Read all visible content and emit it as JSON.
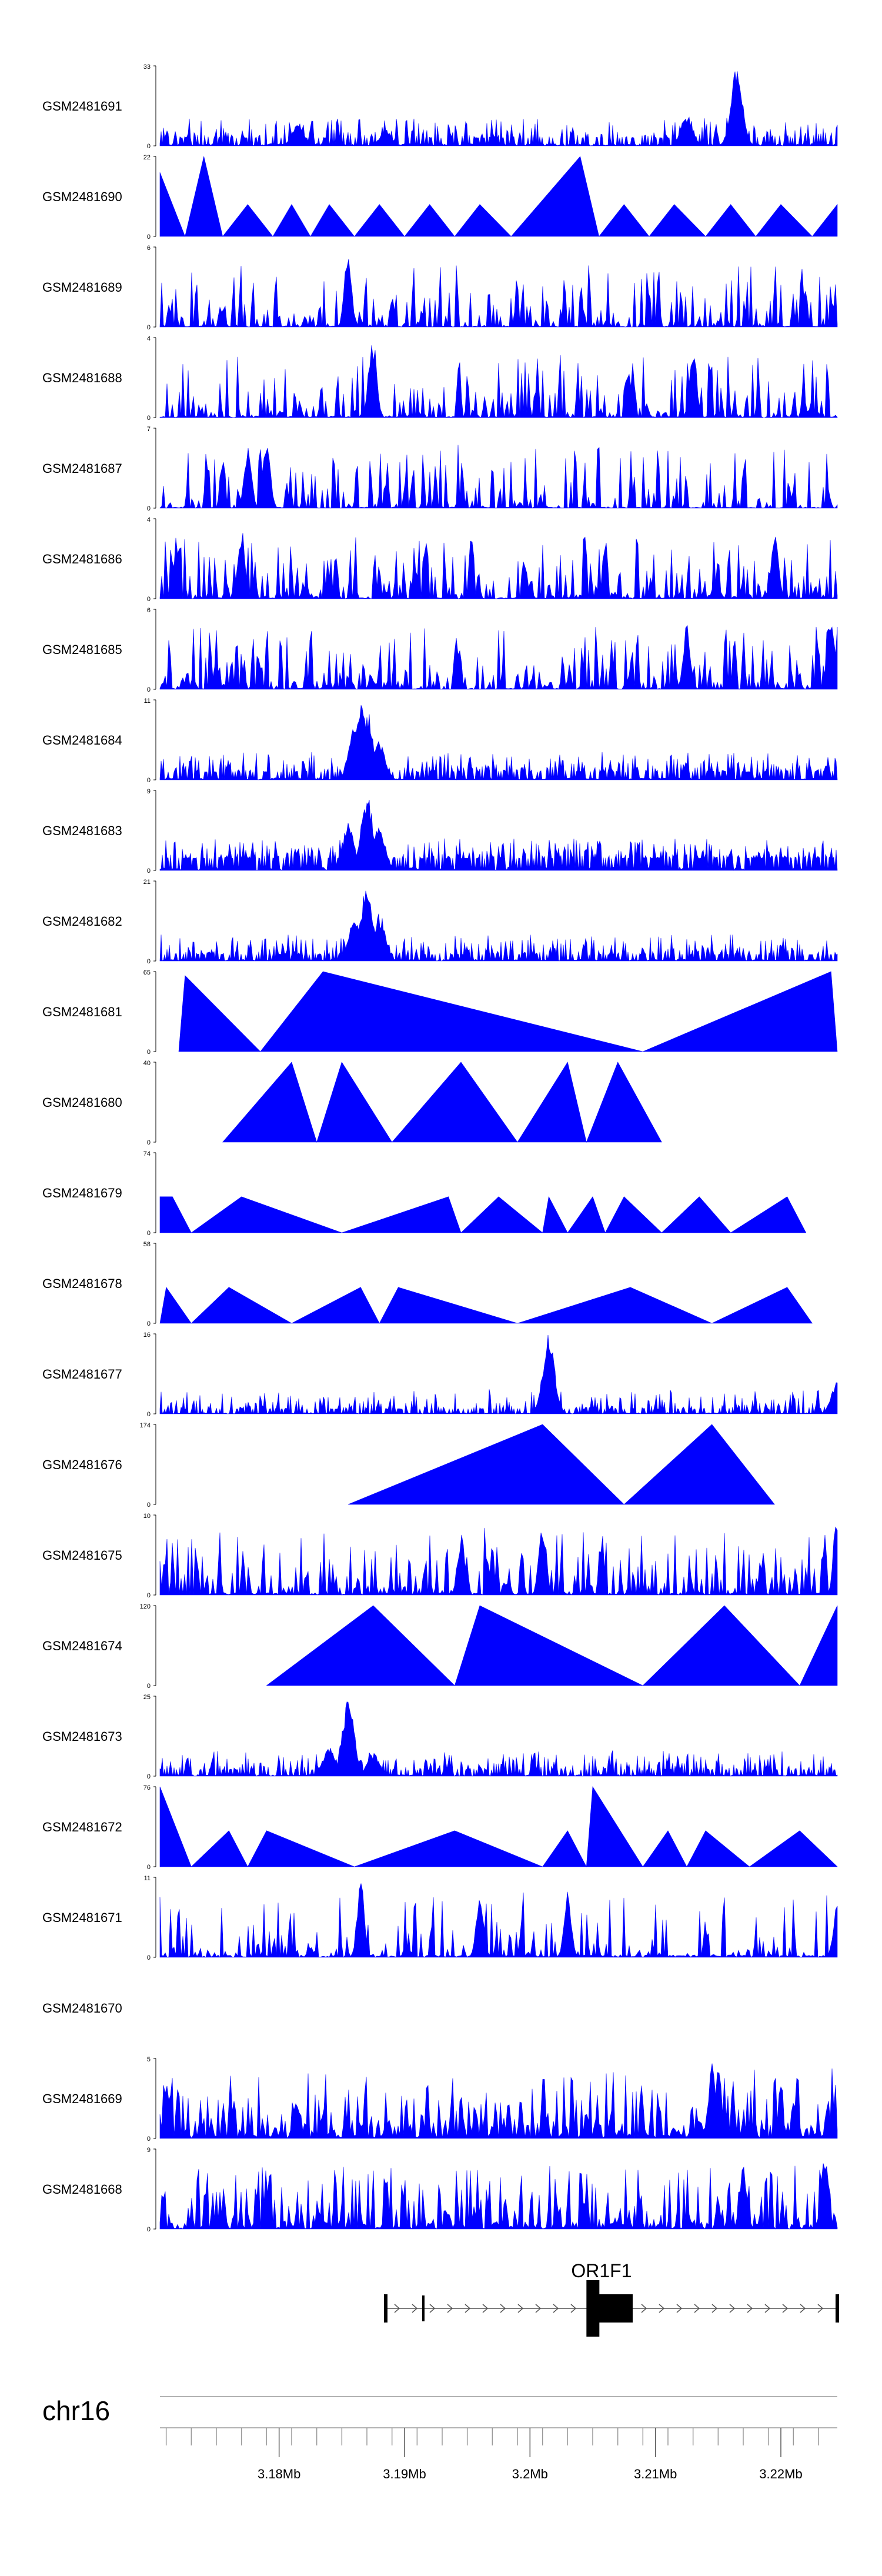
{
  "chart_data": {
    "type": "area",
    "chromosome": "chr16",
    "gene": {
      "name": "OR1F1",
      "start": 3.1885,
      "end": 3.2245,
      "strand": "+",
      "thick_exon": [
        3.2045,
        3.2065
      ]
    },
    "x_range_mb": [
      3.1705,
      3.2245
    ],
    "x_ticks": [
      {
        "value": 3.18,
        "label": "3.18Mb"
      },
      {
        "value": 3.19,
        "label": "3.19Mb"
      },
      {
        "value": 3.2,
        "label": "3.2Mb"
      },
      {
        "value": 3.21,
        "label": "3.21Mb"
      },
      {
        "value": 3.22,
        "label": "3.22Mb"
      }
    ],
    "tracks": [
      {
        "name": "GSM2481691",
        "ymax": "33",
        "style": "noise",
        "density": 0.55,
        "base": 0.1,
        "peaks": [
          [
            3.1815,
            0.3
          ],
          [
            3.1885,
            0.2
          ],
          [
            3.2125,
            0.4
          ],
          [
            3.2165,
            1.0
          ]
        ]
      },
      {
        "name": "GSM2481690",
        "ymax": "22",
        "style": "tri",
        "pts": [
          [
            3.1705,
            0.8
          ],
          [
            3.1725,
            0
          ],
          [
            3.174,
            1.0
          ],
          [
            3.1755,
            0
          ],
          [
            3.1775,
            0.4
          ],
          [
            3.1795,
            0
          ],
          [
            3.181,
            0.4
          ],
          [
            3.1825,
            0
          ],
          [
            3.184,
            0.4
          ],
          [
            3.186,
            0
          ],
          [
            3.188,
            0.4
          ],
          [
            3.19,
            0
          ],
          [
            3.192,
            0.4
          ],
          [
            3.194,
            0
          ],
          [
            3.196,
            0.4
          ],
          [
            3.1985,
            0
          ],
          [
            3.204,
            1.0
          ],
          [
            3.2055,
            0
          ],
          [
            3.2075,
            0.4
          ],
          [
            3.2095,
            0
          ],
          [
            3.2115,
            0.4
          ],
          [
            3.214,
            0
          ],
          [
            3.216,
            0.4
          ],
          [
            3.218,
            0
          ],
          [
            3.22,
            0.4
          ],
          [
            3.2225,
            0
          ],
          [
            3.2245,
            0.4
          ]
        ]
      },
      {
        "name": "GSM2481689",
        "ymax": "6",
        "style": "spiky",
        "density": 0.6,
        "base": 0.05,
        "peaks": [
          [
            3.1855,
            1.0
          ]
        ]
      },
      {
        "name": "GSM2481688",
        "ymax": "4",
        "style": "spiky",
        "density": 0.65,
        "base": 0.05,
        "peaks": [
          [
            3.1875,
            1.0
          ],
          [
            3.213,
            0.9
          ]
        ]
      },
      {
        "name": "GSM2481687",
        "ymax": "7",
        "style": "spiky",
        "density": 0.5,
        "base": 0.05,
        "peaks": [
          [
            3.179,
            1.0
          ],
          [
            3.1775,
            0.8
          ]
        ]
      },
      {
        "name": "GSM2481686",
        "ymax": "4",
        "style": "spiky",
        "density": 0.7,
        "base": 0.05,
        "peaks": [
          [
            3.177,
            0.9
          ],
          [
            3.2195,
            0.9
          ]
        ]
      },
      {
        "name": "GSM2481685",
        "ymax": "6",
        "style": "spiky",
        "density": 0.7,
        "base": 0.05,
        "peaks": [
          [
            3.224,
            1.0
          ],
          [
            3.2125,
            0.9
          ]
        ]
      },
      {
        "name": "GSM2481684",
        "ymax": "11",
        "style": "noise",
        "density": 0.6,
        "base": 0.1,
        "peaks": [
          [
            3.186,
            0.7
          ],
          [
            3.1865,
            1.0
          ],
          [
            3.187,
            0.9
          ],
          [
            3.188,
            0.5
          ]
        ]
      },
      {
        "name": "GSM2481683",
        "ymax": "9",
        "style": "noise",
        "density": 0.7,
        "base": 0.15,
        "peaks": [
          [
            3.1855,
            0.6
          ],
          [
            3.187,
            1.0
          ],
          [
            3.188,
            0.6
          ]
        ]
      },
      {
        "name": "GSM2481682",
        "ymax": "21",
        "style": "noise",
        "density": 0.6,
        "base": 0.08,
        "peaks": [
          [
            3.186,
            0.6
          ],
          [
            3.187,
            1.0
          ],
          [
            3.188,
            0.6
          ]
        ]
      },
      {
        "name": "GSM2481681",
        "ymax": "65",
        "style": "tri",
        "pts": [
          [
            3.172,
            0
          ],
          [
            3.1725,
            0.95
          ],
          [
            3.1785,
            0
          ],
          [
            3.1835,
            1.0
          ],
          [
            3.209,
            0
          ],
          [
            3.224,
            1.0
          ],
          [
            3.2245,
            0
          ]
        ]
      },
      {
        "name": "GSM2481680",
        "ymax": "40",
        "style": "tri",
        "pts": [
          [
            3.1755,
            0
          ],
          [
            3.181,
            1.0
          ],
          [
            3.183,
            0
          ],
          [
            3.185,
            1.0
          ],
          [
            3.189,
            0
          ],
          [
            3.1945,
            1.0
          ],
          [
            3.199,
            0
          ],
          [
            3.203,
            1.0
          ],
          [
            3.2045,
            0
          ],
          [
            3.207,
            1.0
          ],
          [
            3.2105,
            0
          ]
        ]
      },
      {
        "name": "GSM2481679",
        "ymax": "74",
        "style": "tri",
        "pts": [
          [
            3.1705,
            0.45
          ],
          [
            3.1715,
            0.45
          ],
          [
            3.173,
            0
          ],
          [
            3.177,
            0.45
          ],
          [
            3.185,
            0
          ],
          [
            3.1935,
            0.45
          ],
          [
            3.1945,
            0
          ],
          [
            3.1975,
            0.45
          ],
          [
            3.201,
            0
          ],
          [
            3.2015,
            0.45
          ],
          [
            3.203,
            0
          ],
          [
            3.205,
            0.45
          ],
          [
            3.206,
            0
          ],
          [
            3.2075,
            0.45
          ],
          [
            3.2105,
            0
          ],
          [
            3.2135,
            0.45
          ],
          [
            3.216,
            0
          ],
          [
            3.2205,
            0.45
          ],
          [
            3.222,
            0
          ]
        ]
      },
      {
        "name": "GSM2481678",
        "ymax": "58",
        "style": "tri",
        "pts": [
          [
            3.1705,
            0
          ],
          [
            3.171,
            0.45
          ],
          [
            3.173,
            0
          ],
          [
            3.176,
            0.45
          ],
          [
            3.181,
            0
          ],
          [
            3.1865,
            0.45
          ],
          [
            3.188,
            0
          ],
          [
            3.1895,
            0.45
          ],
          [
            3.199,
            0
          ],
          [
            3.208,
            0.45
          ],
          [
            3.2145,
            0
          ],
          [
            3.2205,
            0.45
          ],
          [
            3.2225,
            0
          ]
        ]
      },
      {
        "name": "GSM2481677",
        "ymax": "16",
        "style": "noise",
        "density": 0.55,
        "base": 0.06,
        "peaks": [
          [
            3.2015,
            1.0
          ],
          [
            3.2245,
            0.4
          ]
        ]
      },
      {
        "name": "GSM2481676",
        "ymax": "174",
        "style": "tri",
        "pts": [
          [
            3.1855,
            0
          ],
          [
            3.201,
            1.0
          ],
          [
            3.2075,
            0
          ],
          [
            3.2145,
            1.0
          ],
          [
            3.2195,
            0
          ]
        ]
      },
      {
        "name": "GSM2481675",
        "ymax": "10",
        "style": "spiky",
        "density": 0.6,
        "base": 0.1,
        "peaks": [
          [
            3.1945,
            0.8
          ],
          [
            3.201,
            1.0
          ],
          [
            3.2245,
            1.0
          ]
        ]
      },
      {
        "name": "GSM2481674",
        "ymax": "120",
        "style": "tri",
        "pts": [
          [
            3.179,
            0
          ],
          [
            3.1875,
            1.0
          ],
          [
            3.194,
            0
          ],
          [
            3.196,
            1.0
          ],
          [
            3.209,
            0
          ],
          [
            3.2155,
            1.0
          ],
          [
            3.2215,
            0
          ],
          [
            3.2245,
            1.0
          ]
        ]
      },
      {
        "name": "GSM2481673",
        "ymax": "25",
        "style": "noise",
        "density": 0.55,
        "base": 0.08,
        "peaks": [
          [
            3.1855,
            1.0
          ],
          [
            3.184,
            0.4
          ],
          [
            3.1875,
            0.3
          ]
        ]
      },
      {
        "name": "GSM2481672",
        "ymax": "76",
        "style": "tri",
        "pts": [
          [
            3.1705,
            1.0
          ],
          [
            3.173,
            0
          ],
          [
            3.176,
            0.45
          ],
          [
            3.1775,
            0
          ],
          [
            3.179,
            0.45
          ],
          [
            3.186,
            0
          ],
          [
            3.194,
            0.45
          ],
          [
            3.201,
            0
          ],
          [
            3.203,
            0.45
          ],
          [
            3.2045,
            0
          ],
          [
            3.205,
            1.0
          ],
          [
            3.209,
            0
          ],
          [
            3.211,
            0.45
          ],
          [
            3.2125,
            0
          ],
          [
            3.214,
            0.45
          ],
          [
            3.2175,
            0
          ],
          [
            3.2215,
            0.45
          ],
          [
            3.2245,
            0
          ]
        ]
      },
      {
        "name": "GSM2481671",
        "ymax": "11",
        "style": "spiky",
        "density": 0.45,
        "base": 0.1,
        "peaks": [
          [
            3.1865,
            1.0
          ],
          [
            3.196,
            0.9
          ],
          [
            3.203,
            0.9
          ],
          [
            3.2245,
            0.8
          ]
        ]
      },
      {
        "name": "GSM2481670",
        "ymax": "",
        "style": "empty"
      },
      {
        "name": "GSM2481669",
        "ymax": "5",
        "style": "spiky",
        "density": 0.85,
        "base": 0.15,
        "peaks": [
          [
            3.2145,
            1.0
          ],
          [
            3.215,
            0.9
          ]
        ]
      },
      {
        "name": "GSM2481668",
        "ymax": "9",
        "style": "spiky",
        "density": 0.75,
        "base": 0.08,
        "peaks": [
          [
            3.2235,
            1.0
          ],
          [
            3.217,
            0.8
          ]
        ]
      }
    ]
  }
}
